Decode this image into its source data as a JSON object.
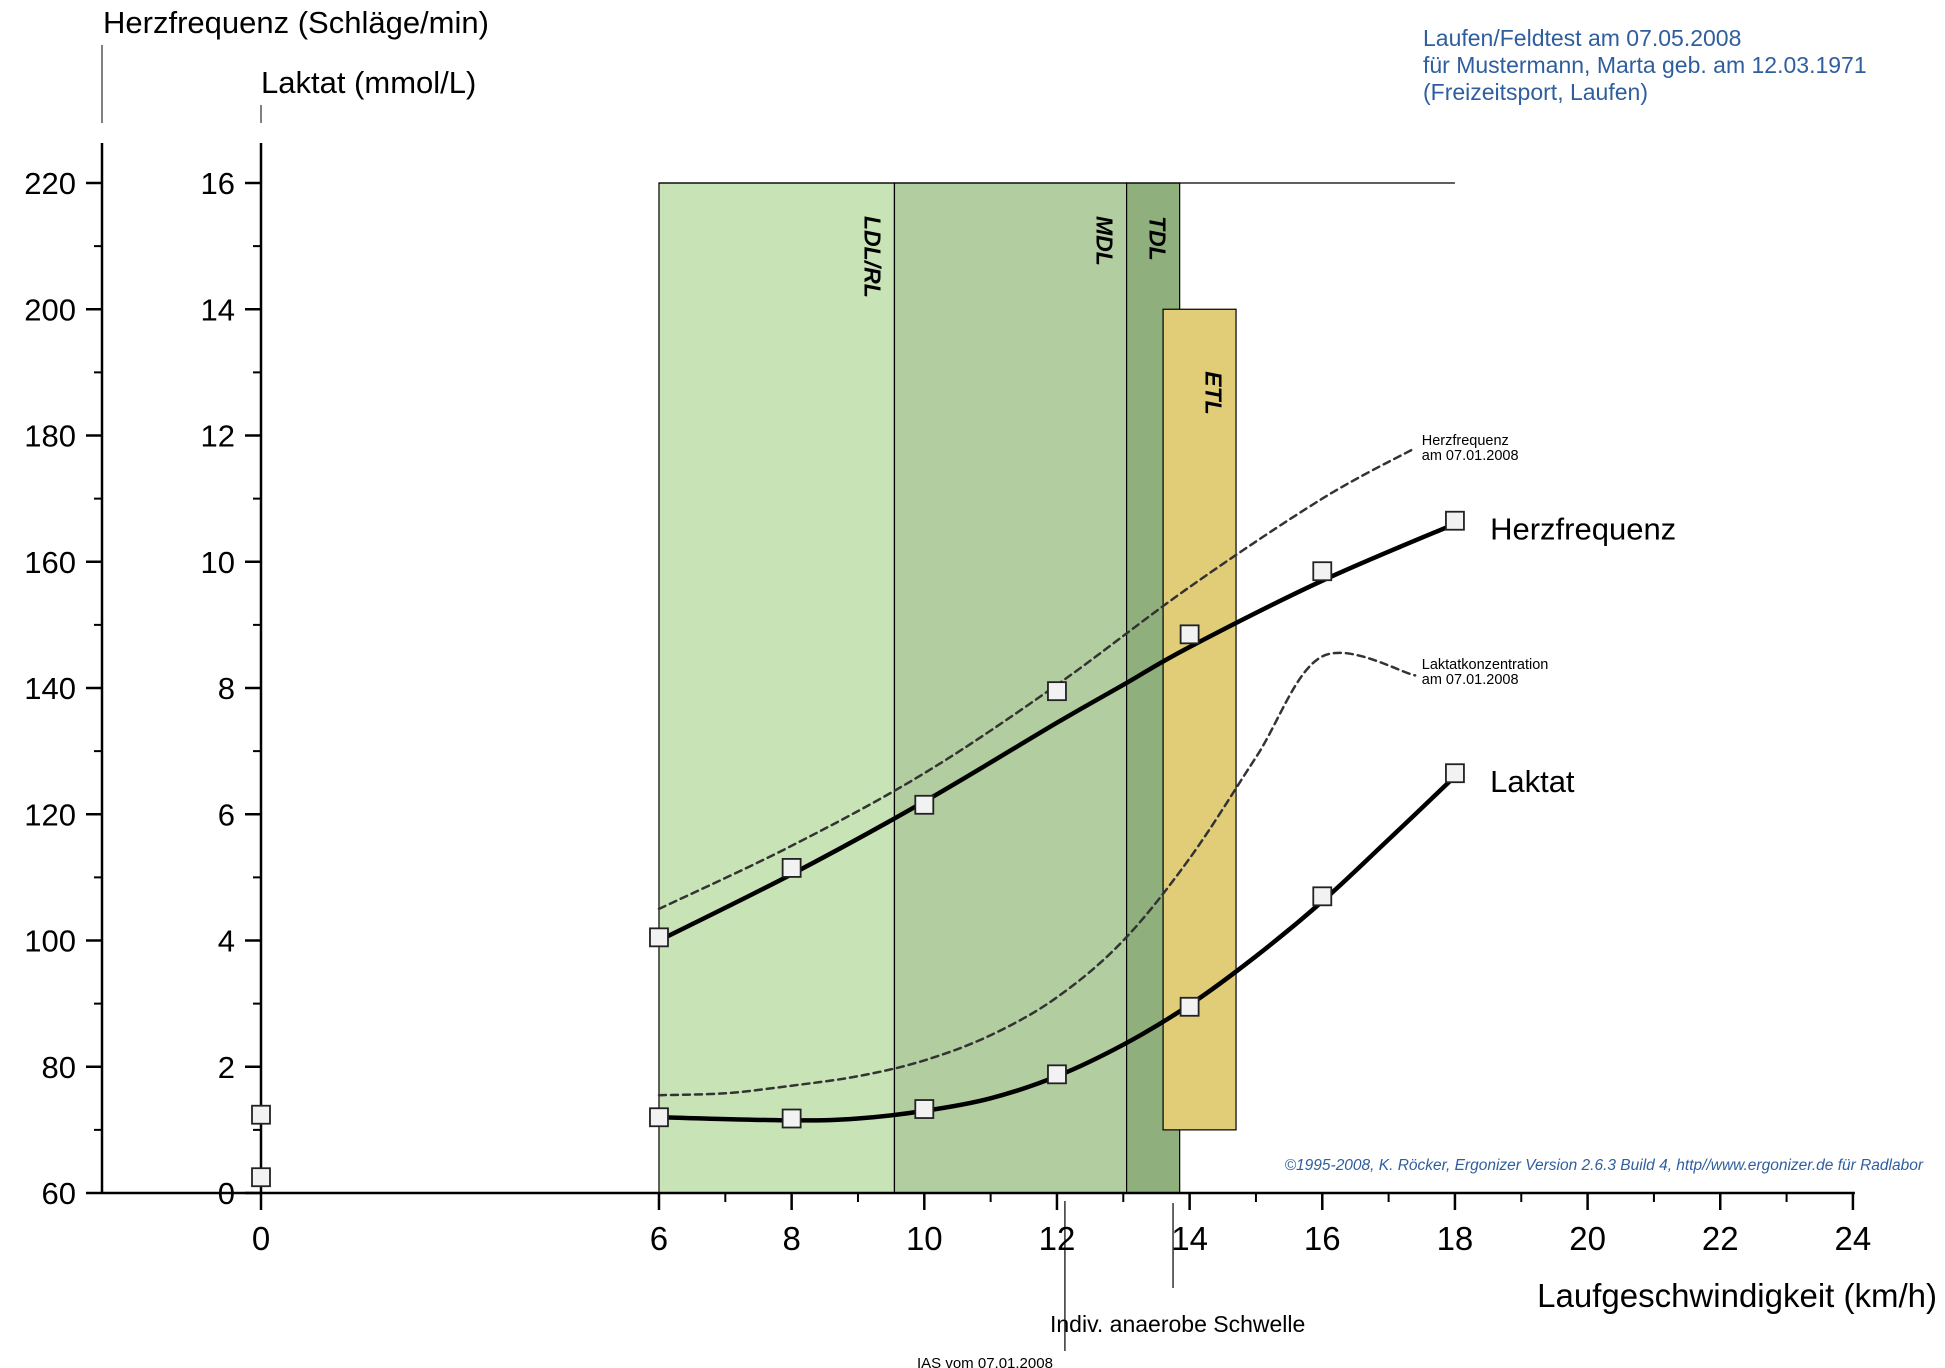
{
  "header": {
    "line1": "Laufen/Feldtest am 07.05.2008",
    "line2": "für Mustermann, Marta geb. am 12.03.1971",
    "line3": "(Freizeitsport, Laufen)"
  },
  "copyright": "©1995-2008, K. Röcker, Ergonizer Version 2.6.3 Build 4, http//www.ergonizer.de für Radlabor",
  "colors": {
    "zone_ldl": "#c8e4b6",
    "zone_mdl": "#b2cd9f",
    "zone_tdl": "#8fb07d",
    "zone_etl": "#e1cd78",
    "header_text": "#2f5e9e",
    "copyright_text": "#2f5e9e"
  },
  "chart_data": {
    "type": "line",
    "xlabel": "Laufgeschwindigkeit (km/h)",
    "ylabel_hr": "Herzfrequenz (Schläge/min)",
    "ylabel_lactate": "Laktat (mmol/L)",
    "xlim": [
      0,
      24
    ],
    "x_ticks": [
      0,
      6,
      8,
      10,
      12,
      14,
      16,
      18,
      20,
      22,
      24
    ],
    "ylim_hr": [
      60,
      220
    ],
    "hr_ticks": [
      60,
      80,
      100,
      120,
      140,
      160,
      180,
      200,
      220
    ],
    "ylim_lactate": [
      0,
      16
    ],
    "lactate_ticks": [
      0,
      2,
      4,
      6,
      8,
      10,
      12,
      14,
      16
    ],
    "zones": [
      {
        "label": "LDL/RL",
        "x_from": 6,
        "x_to": 9.55,
        "lactate_top": 16
      },
      {
        "label": "MDL",
        "x_from": 9.55,
        "x_to": 13.05,
        "lactate_top": 16
      },
      {
        "label": "TDL",
        "x_from": 13.05,
        "x_to": 13.85,
        "lactate_top": 16
      },
      {
        "label": "ETL",
        "x_from": 13.6,
        "x_to": 14.7,
        "lactate_from": 1,
        "lactate_top": 14
      }
    ],
    "series": [
      {
        "name": "Herzfrequenz",
        "axis": "hr",
        "rest_point": {
          "x": 0,
          "y": 72.4
        },
        "points": [
          {
            "x": 6,
            "y": 100.5
          },
          {
            "x": 8,
            "y": 111.5
          },
          {
            "x": 10,
            "y": 121.5
          },
          {
            "x": 12,
            "y": 139.5
          },
          {
            "x": 14,
            "y": 148.5
          },
          {
            "x": 16,
            "y": 158.5
          },
          {
            "x": 18,
            "y": 166.5
          }
        ],
        "fit": [
          {
            "x": 6,
            "y": 100
          },
          {
            "x": 8,
            "y": 110.5
          },
          {
            "x": 10,
            "y": 122
          },
          {
            "x": 12,
            "y": 134.5
          },
          {
            "x": 13,
            "y": 140.5
          },
          {
            "x": 14,
            "y": 146.5
          },
          {
            "x": 16,
            "y": 157
          },
          {
            "x": 18,
            "y": 166
          }
        ]
      },
      {
        "name": "Laktat",
        "axis": "lactate",
        "rest_point": {
          "x": 0,
          "y": 0.25
        },
        "points": [
          {
            "x": 6,
            "y": 1.2
          },
          {
            "x": 8,
            "y": 1.18
          },
          {
            "x": 10,
            "y": 1.33
          },
          {
            "x": 12,
            "y": 1.88
          },
          {
            "x": 14,
            "y": 2.95
          },
          {
            "x": 16,
            "y": 4.7
          },
          {
            "x": 18,
            "y": 6.65
          }
        ],
        "fit": [
          {
            "x": 6,
            "y": 1.2
          },
          {
            "x": 8,
            "y": 1.15
          },
          {
            "x": 9,
            "y": 1.18
          },
          {
            "x": 10,
            "y": 1.3
          },
          {
            "x": 11,
            "y": 1.5
          },
          {
            "x": 12,
            "y": 1.85
          },
          {
            "x": 13,
            "y": 2.35
          },
          {
            "x": 14,
            "y": 2.98
          },
          {
            "x": 15,
            "y": 3.75
          },
          {
            "x": 16,
            "y": 4.62
          },
          {
            "x": 17,
            "y": 5.6
          },
          {
            "x": 18,
            "y": 6.6
          }
        ]
      },
      {
        "name": "Herzfrequenz am 07.01.2008",
        "axis": "hr",
        "style": "dashed",
        "fit": [
          {
            "x": 6,
            "y": 105
          },
          {
            "x": 8,
            "y": 115
          },
          {
            "x": 10,
            "y": 126.5
          },
          {
            "x": 12,
            "y": 140.5
          },
          {
            "x": 14,
            "y": 156
          },
          {
            "x": 16,
            "y": 170
          },
          {
            "x": 17.4,
            "y": 178
          }
        ]
      },
      {
        "name": "Laktatkonzentration am 07.01.2008",
        "axis": "lactate",
        "style": "dashed",
        "fit": [
          {
            "x": 6,
            "y": 1.55
          },
          {
            "x": 7,
            "y": 1.58
          },
          {
            "x": 8,
            "y": 1.7
          },
          {
            "x": 9,
            "y": 1.85
          },
          {
            "x": 10,
            "y": 2.1
          },
          {
            "x": 11,
            "y": 2.5
          },
          {
            "x": 12,
            "y": 3.1
          },
          {
            "x": 13,
            "y": 4.0
          },
          {
            "x": 14,
            "y": 5.3
          },
          {
            "x": 15,
            "y": 6.9
          },
          {
            "x": 16,
            "y": 8.5
          },
          {
            "x": 17.4,
            "y": 8.2
          }
        ]
      }
    ],
    "series_labels": [
      {
        "name": "Herzfrequenz",
        "text": "Herzfrequenz",
        "x": 18.5,
        "axis": "hr",
        "y": 163.5
      },
      {
        "name": "Laktat",
        "text": "Laktat",
        "x": 18.5,
        "axis": "lactate",
        "y": 6.35
      }
    ],
    "annotations": [
      {
        "text_line1": "Herzfrequenz",
        "text_line2": "am 07.01.2008",
        "x": 17.5,
        "axis": "hr",
        "y": 178.5
      },
      {
        "text_line1": "Laktatkonzentration",
        "text_line2": "am 07.01.2008",
        "x": 17.5,
        "axis": "lactate",
        "y": 8.3
      }
    ],
    "thresholds": [
      {
        "label": "Indiv. anaerobe Schwelle",
        "x": 13.75
      },
      {
        "label": "IAS vom 07.01.2008",
        "x": 12.12
      }
    ]
  }
}
